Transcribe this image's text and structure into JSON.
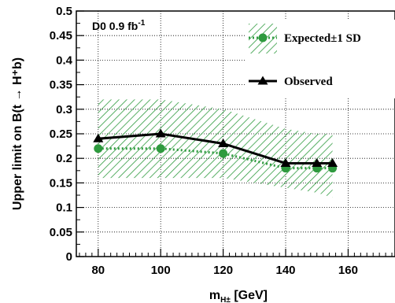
{
  "chart_data": {
    "type": "line",
    "annotation": "D0 0.9 fb",
    "annotation_sup": "-1",
    "xlabel": "m",
    "xlabel_sub": "H±",
    "xlabel_unit": " [GeV]",
    "ylabel": "Upper limit on B(t → H⁺b)",
    "xlim": [
      73,
      175
    ],
    "ylim": [
      0,
      0.5
    ],
    "x_ticks": [
      "80",
      "100",
      "120",
      "140",
      "160"
    ],
    "x_tick_values": [
      80,
      100,
      120,
      140,
      160
    ],
    "y_ticks": [
      "0",
      "0.05",
      "0.1",
      "0.15",
      "0.2",
      "0.25",
      "0.3",
      "0.35",
      "0.4",
      "0.45",
      "0.5"
    ],
    "y_tick_values": [
      0,
      0.05,
      0.1,
      0.15,
      0.2,
      0.25,
      0.3,
      0.35,
      0.4,
      0.45,
      0.5
    ],
    "grid": true,
    "legend_position": "top-right",
    "x": [
      80,
      100,
      120,
      140,
      150,
      155
    ],
    "series": [
      {
        "name": "Expected±1 SD",
        "values": [
          0.22,
          0.22,
          0.21,
          0.18,
          0.18,
          0.18
        ],
        "band_upper": [
          0.32,
          0.32,
          0.3,
          0.26,
          0.25,
          0.25
        ],
        "band_lower": [
          0.16,
          0.16,
          0.16,
          0.14,
          0.13,
          0.12
        ],
        "color": "#2e9a3e",
        "marker": "circle",
        "style": "dotted"
      },
      {
        "name": "Observed",
        "values": [
          0.24,
          0.25,
          0.23,
          0.19,
          0.19,
          0.19
        ],
        "color": "#000000",
        "marker": "triangle",
        "style": "solid"
      }
    ]
  }
}
